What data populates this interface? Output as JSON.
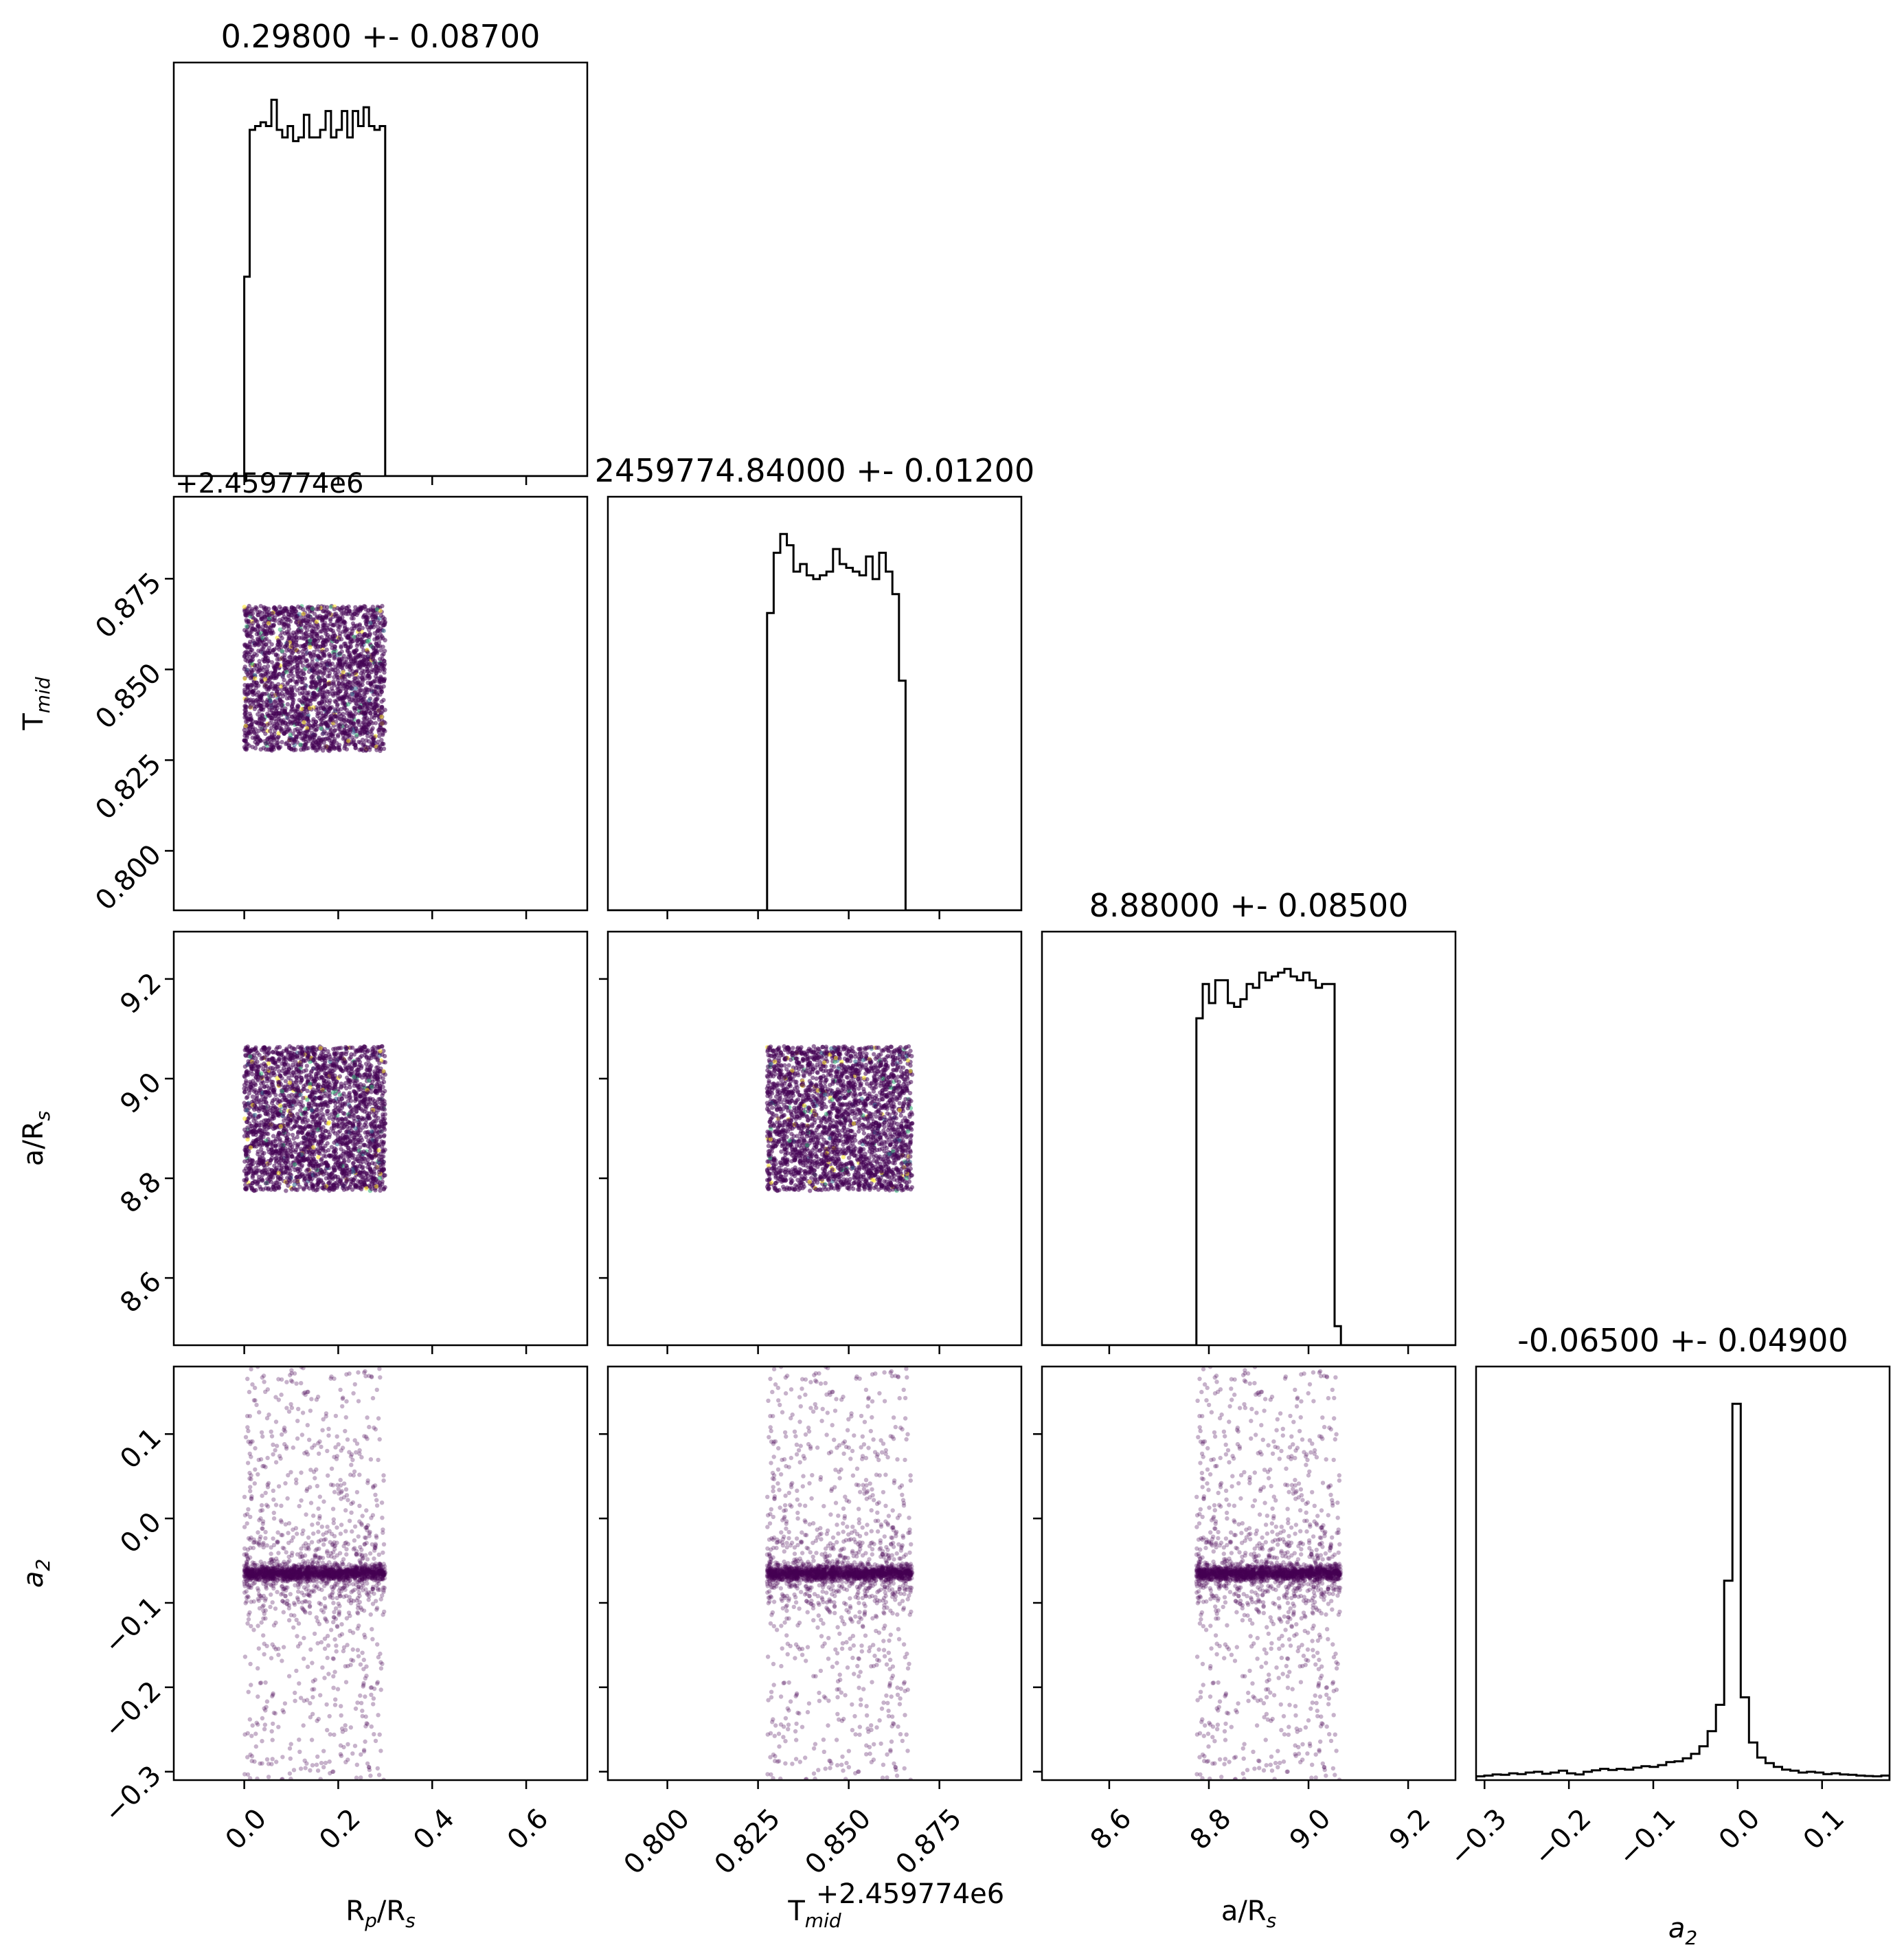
{
  "chart_data": {
    "type": "corner",
    "parameters": [
      {
        "key": "rp",
        "label": "R",
        "label_sub": "p",
        "label_tail": "/R",
        "label_tail_sub": "s",
        "title": "0.29800 +- 0.08700",
        "range": [
          -0.15,
          0.73
        ],
        "ticks": [
          0.0,
          0.2,
          0.4,
          0.6
        ],
        "tick_labels": [
          "0.0",
          "0.2",
          "0.4",
          "0.6"
        ],
        "offset_text": ""
      },
      {
        "key": "tmid",
        "label": "T",
        "label_sub": "mid",
        "label_tail": "",
        "label_tail_sub": "",
        "title": "2459774.84000 +- 0.01200",
        "range": [
          0.7836,
          0.8976
        ],
        "ticks": [
          0.8,
          0.825,
          0.85,
          0.875
        ],
        "tick_labels": [
          "0.800",
          "0.825",
          "0.850",
          "0.875"
        ],
        "offset_text": "+2.459774e6"
      },
      {
        "key": "ars",
        "label": "a/R",
        "label_sub": "s",
        "label_tail": "",
        "label_tail_sub": "",
        "title": "8.88000 +- 0.08500",
        "range": [
          8.465,
          9.295
        ],
        "ticks": [
          8.6,
          8.8,
          9.0,
          9.2
        ],
        "tick_labels": [
          "8.6",
          "8.8",
          "9.0",
          "9.2"
        ],
        "offset_text": ""
      },
      {
        "key": "a2",
        "label": "a",
        "label_sub": "2",
        "label_tail": "",
        "label_tail_sub": "",
        "label_italic": true,
        "title": "-0.06500 +- 0.04900",
        "range": [
          -0.31,
          0.18
        ],
        "ticks": [
          -0.3,
          -0.2,
          -0.1,
          0.0,
          0.1
        ],
        "tick_labels": [
          "−0.3",
          "−0.2",
          "−0.1",
          "0.0",
          "0.1"
        ],
        "offset_text": ""
      }
    ],
    "histograms": [
      {
        "param": "rp",
        "bin_start": 0.0,
        "bin_end": 0.3,
        "counts": [
          0.53,
          0.92,
          0.93,
          0.94,
          0.93,
          1.0,
          0.92,
          0.9,
          0.93,
          0.89,
          0.9,
          0.96,
          0.9,
          0.9,
          0.92,
          0.97,
          0.9,
          0.92,
          0.97,
          0.9,
          0.97,
          0.93,
          0.98,
          0.93,
          0.92,
          0.93
        ]
      },
      {
        "param": "tmid",
        "bin_start": 0.8275,
        "bin_end": 0.8675,
        "counts": [
          0.79,
          0.95,
          1.0,
          0.97,
          0.9,
          0.92,
          0.89,
          0.88,
          0.89,
          0.9,
          0.96,
          0.92,
          0.91,
          0.9,
          0.89,
          0.94,
          0.88,
          0.95,
          0.9,
          0.84,
          0.61,
          0.0
        ]
      },
      {
        "param": "ars",
        "bin_start": 8.775,
        "bin_end": 9.065,
        "counts": [
          0.86,
          0.95,
          0.9,
          0.96,
          0.96,
          0.9,
          0.89,
          0.91,
          0.95,
          0.94,
          0.98,
          0.96,
          0.97,
          0.98,
          0.99,
          0.97,
          0.96,
          0.98,
          0.96,
          0.94,
          0.95,
          0.95,
          0.05
        ]
      },
      {
        "param": "a2",
        "bin_start": -0.31,
        "bin_end": 0.18,
        "counts": [
          0.01,
          0.012,
          0.015,
          0.014,
          0.018,
          0.016,
          0.02,
          0.022,
          0.017,
          0.02,
          0.025,
          0.018,
          0.015,
          0.022,
          0.026,
          0.03,
          0.027,
          0.03,
          0.028,
          0.033,
          0.037,
          0.035,
          0.04,
          0.048,
          0.05,
          0.058,
          0.07,
          0.09,
          0.13,
          0.2,
          0.53,
          1.0,
          0.22,
          0.1,
          0.06,
          0.045,
          0.035,
          0.028,
          0.025,
          0.02,
          0.022,
          0.02,
          0.016,
          0.018,
          0.015,
          0.014,
          0.012,
          0.011,
          0.01,
          0.012
        ]
      }
    ],
    "scatter_panels": [
      {
        "x": "rp",
        "y": "tmid",
        "x_span": [
          0.0,
          0.3
        ],
        "y_span": [
          0.8275,
          0.8675
        ],
        "y_core": null
      },
      {
        "x": "rp",
        "y": "ars",
        "x_span": [
          0.0,
          0.3
        ],
        "y_span": [
          8.775,
          9.065
        ],
        "y_core": null
      },
      {
        "x": "tmid",
        "y": "ars",
        "x_span": [
          0.8275,
          0.8675
        ],
        "y_span": [
          8.775,
          9.065
        ],
        "y_core": null
      },
      {
        "x": "rp",
        "y": "a2",
        "x_span": [
          0.0,
          0.3
        ],
        "y_span": [
          -0.31,
          0.18
        ],
        "y_core": -0.065
      },
      {
        "x": "tmid",
        "y": "a2",
        "x_span": [
          0.8275,
          0.8675
        ],
        "y_span": [
          -0.31,
          0.18
        ],
        "y_core": -0.065
      },
      {
        "x": "ars",
        "y": "a2",
        "x_span": [
          8.775,
          9.065
        ],
        "y_span": [
          -0.31,
          0.18
        ],
        "y_core": -0.065
      }
    ],
    "point_color": "#440154",
    "point_colors_rare": [
      "#31688e",
      "#35b779",
      "#fde725"
    ],
    "grid": false
  }
}
